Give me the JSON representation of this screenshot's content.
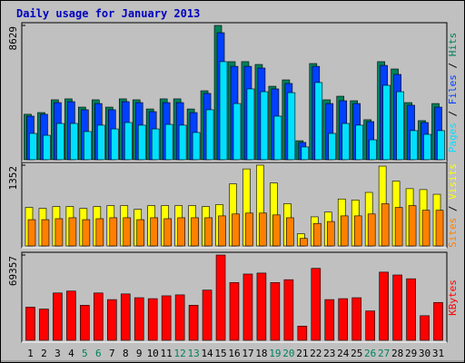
{
  "chart_data": {
    "type": "bar",
    "title": "Daily usage for January 2013",
    "categories": [
      "1",
      "2",
      "3",
      "4",
      "5",
      "6",
      "7",
      "8",
      "9",
      "10",
      "11",
      "12",
      "13",
      "14",
      "15",
      "16",
      "17",
      "18",
      "19",
      "20",
      "21",
      "22",
      "23",
      "24",
      "25",
      "26",
      "27",
      "28",
      "29",
      "30",
      "31"
    ],
    "category_colors": [
      "#000000",
      "#000000",
      "#000000",
      "#000000",
      "#00805c",
      "#00805c",
      "#000000",
      "#000000",
      "#000000",
      "#000000",
      "#000000",
      "#00805c",
      "#00805c",
      "#000000",
      "#000000",
      "#000000",
      "#000000",
      "#000000",
      "#00805c",
      "#00805c",
      "#000000",
      "#000000",
      "#000000",
      "#000000",
      "#000000",
      "#00805c",
      "#00805c",
      "#000000",
      "#000000",
      "#000000",
      "#000000"
    ],
    "legend_separator": " / ",
    "panels": [
      {
        "ylim": [
          0,
          8629
        ],
        "yticks": [
          8629
        ],
        "series": [
          {
            "name": "Pages",
            "color": "#00e0ff",
            "values": [
              1690,
              1570,
              2330,
              2330,
              1810,
              2220,
              1980,
              2390,
              2220,
              1980,
              2270,
              2220,
              1750,
              3210,
              6300,
              3610,
              4550,
              4370,
              2800,
              4310,
              820,
              4960,
              1690,
              2330,
              2220,
              1280,
              4780,
              4370,
              1870,
              1630,
              1870
            ]
          },
          {
            "name": "Files",
            "color": "#0040ff",
            "values": [
              2800,
              2920,
              3670,
              3730,
              3210,
              3610,
              3210,
              3730,
              3670,
              3090,
              3670,
              3670,
              3030,
              4260,
              8160,
              6000,
              6000,
              5890,
              4550,
              4900,
              1110,
              6000,
              3610,
              3790,
              3610,
              2450,
              6060,
              5480,
              3500,
              2390,
              3380
            ]
          },
          {
            "name": "Hits",
            "color": "#00805c",
            "values": [
              2920,
              3030,
              3850,
              3910,
              3380,
              3850,
              3380,
              3910,
              3850,
              3260,
              3910,
              3910,
              3260,
              4430,
              8629,
              6300,
              6300,
              6120,
              4720,
              5130,
              1220,
              6180,
              3850,
              4080,
              3790,
              2570,
              6300,
              5830,
              3670,
              2510,
              3610
            ]
          }
        ]
      },
      {
        "ylim": [
          0,
          1352
        ],
        "yticks": [
          1352
        ],
        "series": [
          {
            "name": "Sites",
            "color": "#ff8000",
            "values": [
              440,
              440,
              456,
              472,
              440,
              456,
              472,
              472,
              440,
              472,
              456,
              472,
              472,
              472,
              503,
              535,
              550,
              550,
              519,
              472,
              126,
              377,
              409,
              503,
              503,
              535,
              707,
              645,
              676,
              597,
              597
            ]
          },
          {
            "name": "Visits",
            "color": "#ffff00",
            "values": [
              645,
              629,
              660,
              660,
              629,
              660,
              676,
              676,
              613,
              676,
              676,
              676,
              676,
              660,
              692,
              1038,
              1289,
              1352,
              1053,
              707,
              204,
              487,
              566,
              786,
              770,
              896,
              1336,
              1085,
              959,
              943,
              865
            ]
          }
        ]
      },
      {
        "ylim": [
          0,
          69357
        ],
        "yticks": [
          69357
        ],
        "series": [
          {
            "name": "KBytes",
            "color": "#ff0000",
            "values": [
              26950,
              25410,
              38500,
              40040,
              28490,
              38500,
              33110,
              37730,
              34650,
              33880,
              36190,
              36960,
              28490,
              40810,
              69357,
              46970,
              53900,
              54670,
              46970,
              49280,
              11550,
              58520,
              33110,
              33880,
              34650,
              23870,
              55440,
              53130,
              50050,
              20020,
              30800
            ]
          }
        ]
      }
    ]
  }
}
